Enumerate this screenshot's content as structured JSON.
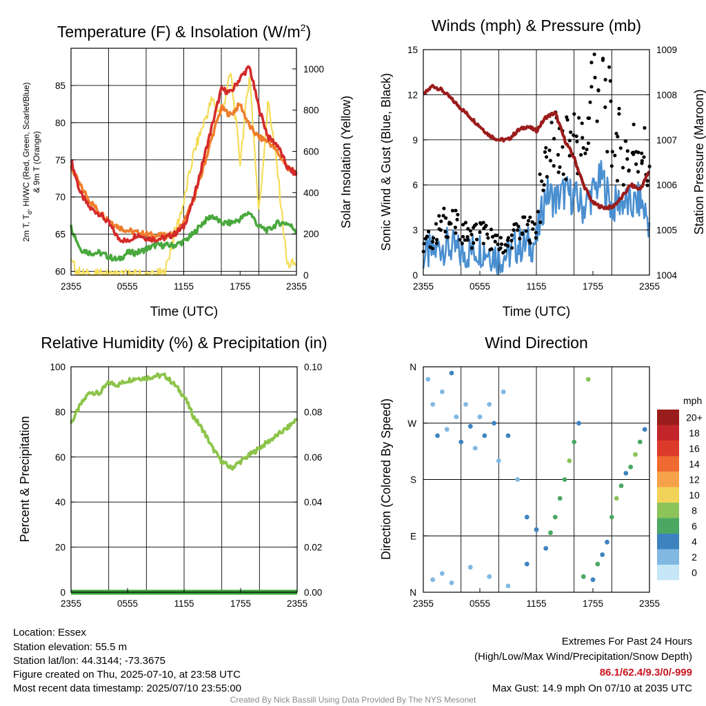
{
  "panels": {
    "temperature": {
      "title": "Temperature (F) & Insolation (W/m",
      "title_sup": "2",
      "title_close": ")",
      "xlabel": "Time (UTC)",
      "ylabel_left_line1": "2m T, T",
      "ylabel_left_sub": "d",
      "ylabel_left_line1_rest": ", HI/WC (Red, Green, Scarlet/Blue)",
      "ylabel_left_line2": "& 9m T (Orange)",
      "ylabel_right": "Solar Insolation (Yellow)"
    },
    "winds": {
      "title": "Winds (mph) & Pressure (mb)",
      "xlabel": "Time (UTC)",
      "ylabel_left": "Sonic Wind & Gust (Blue, Black)",
      "ylabel_right": "Station Pressure (Maroon)"
    },
    "humidity": {
      "title": "Relative Humidity (%) & Precipitation (in)",
      "ylabel_left": "Percent & Precipitation"
    },
    "direction": {
      "title": "Wind Direction",
      "ylabel_left": "Direction (Colored By Speed)"
    }
  },
  "legend": {
    "unit": "mph",
    "labels": [
      "20+",
      "18",
      "16",
      "14",
      "12",
      "10",
      "8",
      "6",
      "4",
      "2",
      "0"
    ],
    "colors": [
      "#9b1c1c",
      "#c2262a",
      "#dc3b2b",
      "#ef6a30",
      "#f7a24a",
      "#f2d35a",
      "#8cc45a",
      "#4aa863",
      "#3d83c0",
      "#80b8e2",
      "#c6e6f7"
    ]
  },
  "footer": {
    "location": "Location: Essex",
    "elevation": "Station elevation: 55.5 m",
    "latlon": "Station lat/lon: 44.3144; -73.3675",
    "created": "Figure created on Thu, 2025-07-10, at 23:58 UTC",
    "recent": "Most recent data timestamp: 2025/07/10 23:55:00",
    "extremes_title": "Extremes For Past 24 Hours",
    "extremes_desc": "(High/Low/Max Wind/Precipitation/Snow Depth)",
    "extremes_values": "86.1/62.4/9.3/0/-999",
    "max_gust": "Max Gust: 14.9 mph On 07/10 at 2035 UTC",
    "credit": "Created By Nick Bassill Using Data Provided By The NYS Mesonet"
  },
  "chart_data": [
    {
      "type": "line",
      "title": "Temperature (F) & Insolation (W/m2)",
      "xlabel": "Time (UTC)",
      "ylabel": "2m T, Td, HI/WC (Red, Green, Scarlet/Blue) & 9m T (Orange)",
      "y2label": "Solar Insolation (Yellow)",
      "x_ticks": [
        "2355",
        "0555",
        "1155",
        "1755",
        "2355"
      ],
      "x_range_hours": [
        0,
        24
      ],
      "ylim": [
        59.5,
        90
      ],
      "y_ticks": [
        60,
        65,
        70,
        75,
        80,
        85
      ],
      "y2lim": [
        0,
        1100
      ],
      "y2_ticks": [
        0,
        200,
        400,
        600,
        800,
        1000
      ],
      "x": [
        0,
        1,
        2,
        3,
        4,
        5,
        6,
        7,
        8,
        9,
        10,
        11,
        12,
        13,
        14,
        15,
        16,
        17,
        18,
        19,
        20,
        21,
        22,
        23,
        24
      ],
      "series": [
        {
          "name": "2m T",
          "color": "#d42a2a",
          "axis": "left",
          "values": [
            75.0,
            70.5,
            68.5,
            67.8,
            66.5,
            64.5,
            64.0,
            65.0,
            64.5,
            64.3,
            64.5,
            65.0,
            66.0,
            69.5,
            74.5,
            79.5,
            84.5,
            84.0,
            86.0,
            87.5,
            82.0,
            78.0,
            77.0,
            74.0,
            73.0
          ]
        },
        {
          "name": "9m T",
          "color": "#ee7d2c",
          "axis": "left",
          "values": [
            74.0,
            71.5,
            69.5,
            68.0,
            67.0,
            66.0,
            65.5,
            65.2,
            65.0,
            64.8,
            64.8,
            65.0,
            66.5,
            69.5,
            73.5,
            78.0,
            82.0,
            81.0,
            82.5,
            79.5,
            78.0,
            77.5,
            76.0,
            74.0,
            73.2
          ]
        },
        {
          "name": "2m Td",
          "color": "#4aa83e",
          "axis": "left",
          "values": [
            66.0,
            63.0,
            62.5,
            62.5,
            62.0,
            61.5,
            62.5,
            62.5,
            63.0,
            63.5,
            63.5,
            63.5,
            64.0,
            65.0,
            66.5,
            67.5,
            66.5,
            66.5,
            67.0,
            68.0,
            66.0,
            65.5,
            66.5,
            66.5,
            65.5
          ]
        },
        {
          "name": "Solar Insolation",
          "color": "#f4dc57",
          "axis": "right",
          "values": [
            60,
            5,
            0,
            0,
            0,
            0,
            0,
            0,
            0,
            0,
            10,
            200,
            350,
            580,
            720,
            850,
            780,
            980,
            550,
            980,
            300,
            850,
            500,
            50,
            55
          ]
        }
      ]
    },
    {
      "type": "line",
      "title": "Winds (mph) & Pressure (mb)",
      "xlabel": "Time (UTC)",
      "ylabel": "Sonic Wind & Gust (Blue, Black)",
      "y2label": "Station Pressure (Maroon)",
      "x_ticks": [
        "2355",
        "0555",
        "1155",
        "1755",
        "2355"
      ],
      "ylim": [
        0,
        15
      ],
      "y_ticks": [
        0,
        3,
        6,
        9,
        12,
        15
      ],
      "y2lim": [
        1004,
        1009
      ],
      "y2_ticks": [
        1004,
        1005,
        1006,
        1007,
        1008,
        1009
      ],
      "x": [
        0,
        1,
        2,
        3,
        4,
        5,
        6,
        7,
        8,
        9,
        10,
        11,
        12,
        13,
        14,
        15,
        16,
        17,
        18,
        19,
        20,
        21,
        22,
        23,
        24
      ],
      "series": [
        {
          "name": "Sonic Wind",
          "color": "#4a8fd0",
          "axis": "left",
          "values": [
            1.3,
            1.5,
            2.0,
            1.8,
            1.4,
            1.6,
            1.8,
            1.6,
            1.2,
            1.4,
            2.0,
            2.0,
            2.2,
            5.5,
            5.0,
            5.5,
            5.2,
            4.5,
            5.5,
            6.5,
            4.5,
            5.0,
            4.5,
            5.0,
            3.5
          ]
        },
        {
          "name": "Gust",
          "color": "#000000",
          "axis": "left",
          "values": [
            2.0,
            2.5,
            3.5,
            3.5,
            3.0,
            2.5,
            3.0,
            2.5,
            2.0,
            2.0,
            3.0,
            3.0,
            3.2,
            8.0,
            8.5,
            8.0,
            9.5,
            8.0,
            13.0,
            14.0,
            9.0,
            8.5,
            8.0,
            9.0,
            6.5
          ]
        },
        {
          "name": "Station Pressure",
          "color": "#9b1c1c",
          "axis": "right",
          "values": [
            1008.0,
            1008.2,
            1008.1,
            1007.9,
            1007.7,
            1007.5,
            1007.3,
            1007.1,
            1007.0,
            1007.0,
            1007.2,
            1007.3,
            1007.2,
            1007.5,
            1007.6,
            1007.0,
            1006.6,
            1006.0,
            1005.6,
            1005.5,
            1005.5,
            1005.7,
            1006.0,
            1005.9,
            1006.3
          ]
        }
      ]
    },
    {
      "type": "line",
      "title": "Relative Humidity (%) & Precipitation (in)",
      "ylabel": "Percent & Precipitation",
      "x_ticks": [
        "2355",
        "0555",
        "1155",
        "1755",
        "2355"
      ],
      "ylim": [
        0,
        100
      ],
      "y_ticks": [
        0,
        20,
        40,
        60,
        80,
        100
      ],
      "y2lim": [
        0,
        0.1
      ],
      "y2_ticks": [
        "0.00",
        "0.02",
        "0.04",
        "0.06",
        "0.08",
        "0.10"
      ],
      "x": [
        0,
        1,
        2,
        3,
        4,
        5,
        6,
        7,
        8,
        9,
        10,
        11,
        12,
        13,
        14,
        15,
        16,
        17,
        18,
        19,
        20,
        21,
        22,
        23,
        24
      ],
      "series": [
        {
          "name": "Relative Humidity",
          "color": "#8cc449",
          "axis": "left",
          "values": [
            75,
            83,
            89,
            88,
            93,
            92,
            94,
            95,
            95,
            96,
            96,
            92,
            87,
            78,
            72,
            64,
            58,
            55,
            58,
            61,
            64,
            67,
            70,
            73,
            77
          ]
        },
        {
          "name": "Precipitation",
          "color": "#3aa33a",
          "axis": "right",
          "values": [
            0,
            0,
            0,
            0,
            0,
            0,
            0,
            0,
            0,
            0,
            0,
            0,
            0,
            0,
            0,
            0,
            0,
            0,
            0,
            0,
            0,
            0,
            0,
            0,
            0
          ]
        }
      ]
    },
    {
      "type": "scatter",
      "title": "Wind Direction",
      "ylabel": "Direction (Colored By Speed)",
      "x_ticks": [
        "2355",
        "0555",
        "1155",
        "1755",
        "2355"
      ],
      "y_ticks": [
        "N",
        "E",
        "S",
        "W",
        "N"
      ],
      "ylim_degrees": [
        0,
        360
      ],
      "points": [
        {
          "t": 0.5,
          "dir": 340,
          "spd": 1
        },
        {
          "t": 1.0,
          "dir": 300,
          "spd": 2
        },
        {
          "t": 1.5,
          "dir": 250,
          "spd": 3
        },
        {
          "t": 2.0,
          "dir": 320,
          "spd": 1
        },
        {
          "t": 2.5,
          "dir": 260,
          "spd": 2
        },
        {
          "t": 3.0,
          "dir": 350,
          "spd": 3
        },
        {
          "t": 3.5,
          "dir": 280,
          "spd": 2
        },
        {
          "t": 4.0,
          "dir": 240,
          "spd": 4
        },
        {
          "t": 4.5,
          "dir": 300,
          "spd": 1
        },
        {
          "t": 5.0,
          "dir": 265,
          "spd": 3
        },
        {
          "t": 5.5,
          "dir": 230,
          "spd": 2
        },
        {
          "t": 6.0,
          "dir": 280,
          "spd": 1
        },
        {
          "t": 6.5,
          "dir": 250,
          "spd": 3
        },
        {
          "t": 7.0,
          "dir": 300,
          "spd": 2
        },
        {
          "t": 7.5,
          "dir": 270,
          "spd": 4
        },
        {
          "t": 8.0,
          "dir": 210,
          "spd": 2
        },
        {
          "t": 8.5,
          "dir": 320,
          "spd": 1
        },
        {
          "t": 9.0,
          "dir": 250,
          "spd": 3
        },
        {
          "t": 10.0,
          "dir": 180,
          "spd": 2
        },
        {
          "t": 11.0,
          "dir": 120,
          "spd": 3
        },
        {
          "t": 12.0,
          "dir": 100,
          "spd": 4
        },
        {
          "t": 13.0,
          "dir": 70,
          "spd": 4
        },
        {
          "t": 13.5,
          "dir": 95,
          "spd": 5
        },
        {
          "t": 14.0,
          "dir": 120,
          "spd": 6
        },
        {
          "t": 14.5,
          "dir": 150,
          "spd": 5
        },
        {
          "t": 15.0,
          "dir": 180,
          "spd": 6
        },
        {
          "t": 15.5,
          "dir": 210,
          "spd": 7
        },
        {
          "t": 16.0,
          "dir": 240,
          "spd": 5
        },
        {
          "t": 16.5,
          "dir": 270,
          "spd": 4
        },
        {
          "t": 17.0,
          "dir": 25,
          "spd": 5
        },
        {
          "t": 17.5,
          "dir": 340,
          "spd": 8
        },
        {
          "t": 18.0,
          "dir": 20,
          "spd": 4
        },
        {
          "t": 18.5,
          "dir": 45,
          "spd": 5
        },
        {
          "t": 19.0,
          "dir": 60,
          "spd": 4
        },
        {
          "t": 19.5,
          "dir": 80,
          "spd": 3
        },
        {
          "t": 20.0,
          "dir": 120,
          "spd": 5
        },
        {
          "t": 20.5,
          "dir": 150,
          "spd": 7
        },
        {
          "t": 21.0,
          "dir": 170,
          "spd": 6
        },
        {
          "t": 21.5,
          "dir": 190,
          "spd": 4
        },
        {
          "t": 22.0,
          "dir": 200,
          "spd": 5
        },
        {
          "t": 22.5,
          "dir": 220,
          "spd": 7
        },
        {
          "t": 23.0,
          "dir": 240,
          "spd": 6
        },
        {
          "t": 23.5,
          "dir": 260,
          "spd": 4
        },
        {
          "t": 1.0,
          "dir": 20,
          "spd": 2
        },
        {
          "t": 2.0,
          "dir": 30,
          "spd": 1
        },
        {
          "t": 3.0,
          "dir": 15,
          "spd": 2
        },
        {
          "t": 5.0,
          "dir": 40,
          "spd": 1
        },
        {
          "t": 7.0,
          "dir": 25,
          "spd": 2
        },
        {
          "t": 9.0,
          "dir": 10,
          "spd": 1
        },
        {
          "t": 11.0,
          "dir": 45,
          "spd": 3
        }
      ]
    }
  ]
}
